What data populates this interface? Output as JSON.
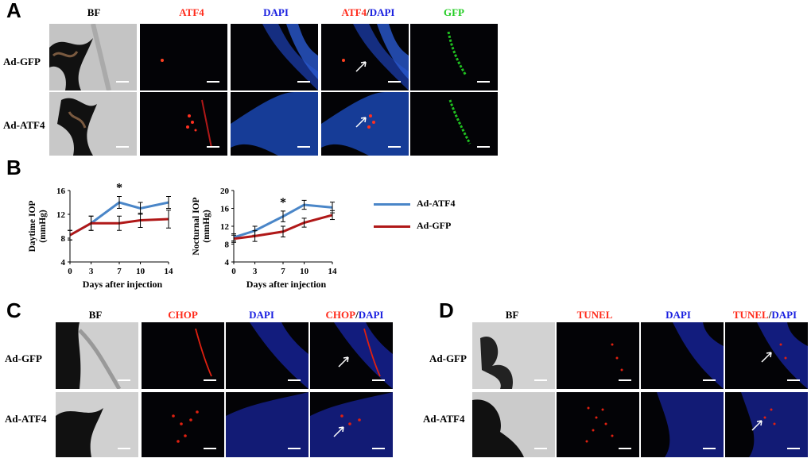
{
  "panels": {
    "A": {
      "letter": "A",
      "columns": [
        "BF",
        "ATF4",
        "DAPI",
        "ATF4",
        "/",
        "DAPI",
        "GFP"
      ],
      "rows": [
        "Ad-GFP",
        "Ad-ATF4"
      ]
    },
    "B": {
      "letter": "B"
    },
    "C": {
      "letter": "C",
      "columns": [
        "BF",
        "CHOP",
        "DAPI",
        "CHOP",
        "/",
        "DAPI"
      ],
      "rows": [
        "Ad-GFP",
        "Ad-ATF4"
      ]
    },
    "D": {
      "letter": "D",
      "columns": [
        "BF",
        "TUNEL",
        "DAPI",
        "TUNEL",
        "/",
        "DAPI"
      ],
      "rows": [
        "Ad-GFP",
        "Ad-ATF4"
      ]
    }
  },
  "colors": {
    "red": "#ff2a1a",
    "blue": "#1a20e0",
    "green": "#22cc22",
    "atf4_line": "#4a86c8",
    "gfp_line": "#b01818"
  },
  "legend": [
    "Ad-ATF4",
    "Ad-GFP"
  ],
  "chart_data": [
    {
      "type": "line",
      "x": [
        0,
        3,
        7,
        10,
        14
      ],
      "xlabel": "Days after injection",
      "ylabel": "Daytime  IOP (mmHg)",
      "ylabel_lines": [
        "Daytime  IOP",
        "(mmHg)"
      ],
      "yticks": [
        4,
        8,
        12,
        16
      ],
      "ylim": [
        4,
        16
      ],
      "significance": {
        "x": 7,
        "label": "*"
      },
      "series": [
        {
          "name": "Ad-ATF4",
          "values": [
            8.5,
            10.5,
            14.0,
            13.0,
            14.0
          ],
          "err": [
            0.8,
            1.2,
            1.0,
            1.0,
            1.0
          ]
        },
        {
          "name": "Ad-GFP",
          "values": [
            8.5,
            10.5,
            10.5,
            11.0,
            11.2
          ],
          "err": [
            0.8,
            1.2,
            1.2,
            1.2,
            1.5
          ]
        }
      ]
    },
    {
      "type": "line",
      "x": [
        0,
        3,
        7,
        10,
        14
      ],
      "xlabel": "Days after injection",
      "ylabel": "Nocturnal IOP (mmHg)",
      "ylabel_lines": [
        "Nocturnal IOP",
        "(mmHg)"
      ],
      "yticks": [
        4,
        8,
        12,
        16,
        20
      ],
      "ylim": [
        4,
        20
      ],
      "significance": {
        "x": 7,
        "label": "*"
      },
      "series": [
        {
          "name": "Ad-ATF4",
          "values": [
            9.5,
            11.0,
            14.2,
            16.8,
            16.2
          ],
          "err": [
            0.8,
            1.0,
            1.2,
            1.0,
            1.2
          ]
        },
        {
          "name": "Ad-GFP",
          "values": [
            9.2,
            9.8,
            10.8,
            12.8,
            14.5
          ],
          "err": [
            0.8,
            1.2,
            1.2,
            1.0,
            1.0
          ]
        }
      ]
    }
  ]
}
